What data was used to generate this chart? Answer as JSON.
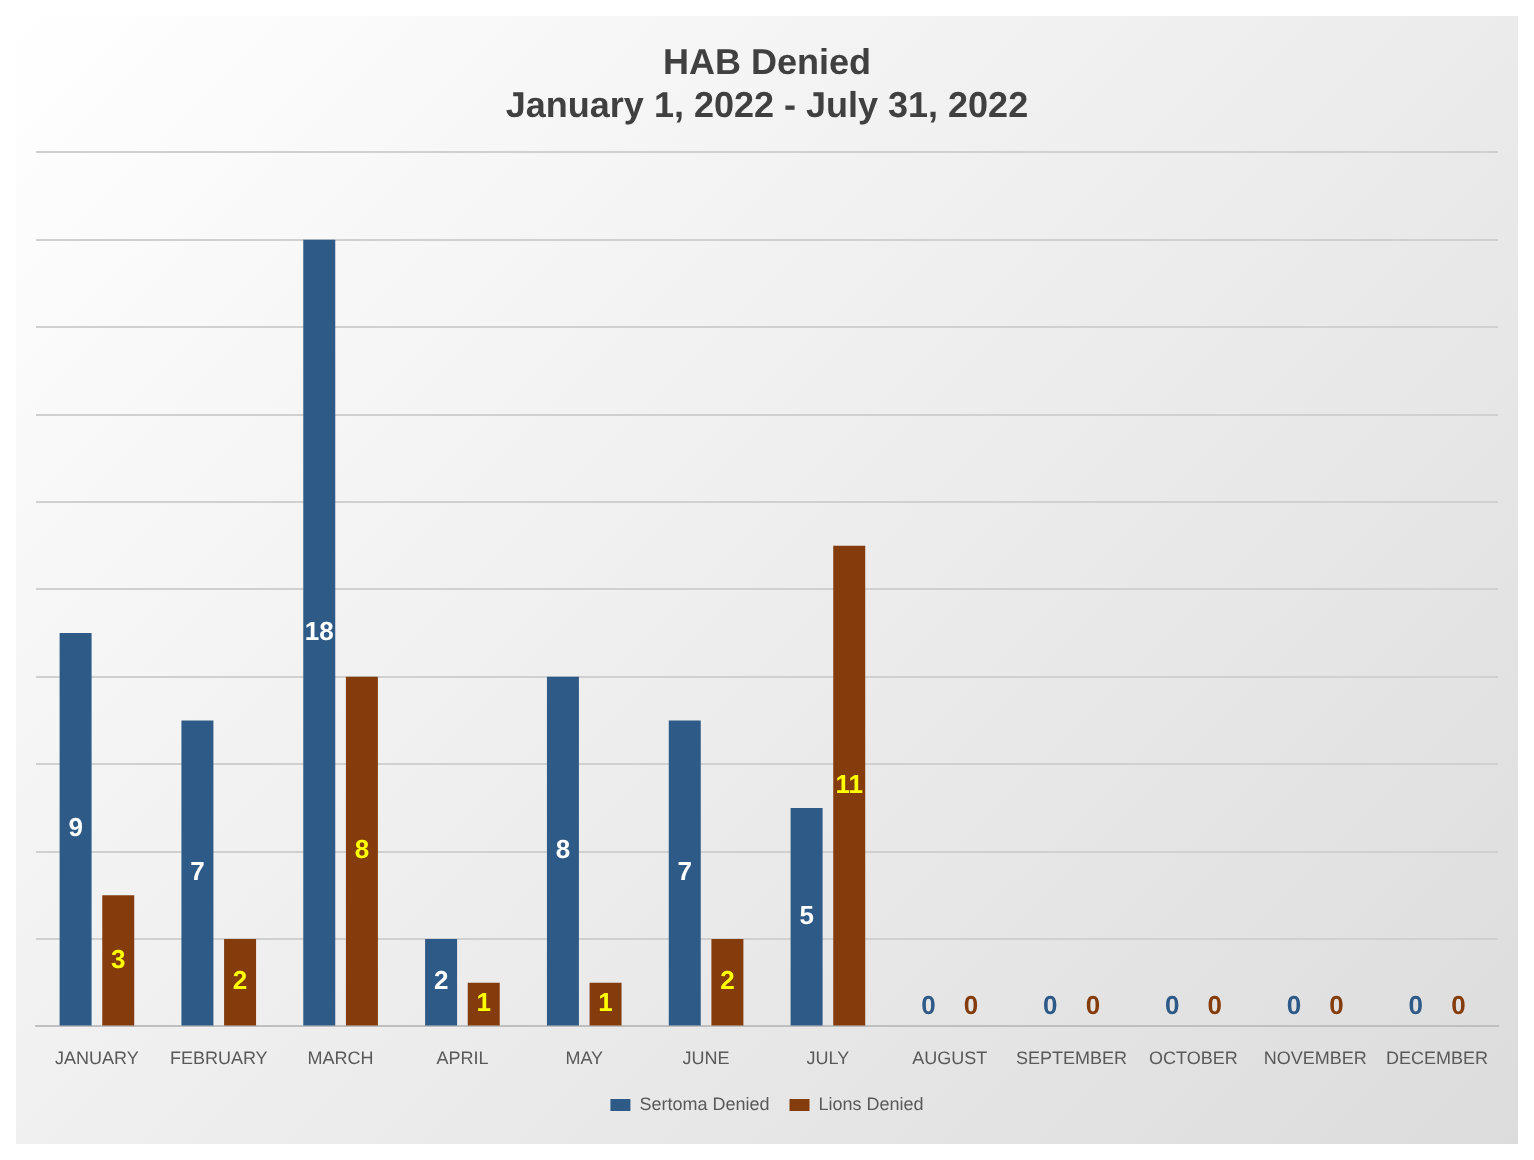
{
  "chart_data": {
    "type": "bar",
    "title": "HAB Denied\nJanuary 1, 2022 - July 31, 2022",
    "categories": [
      "JANUARY",
      "FEBRUARY",
      "MARCH",
      "APRIL",
      "MAY",
      "JUNE",
      "JULY",
      "AUGUST",
      "SEPTEMBER",
      "OCTOBER",
      "NOVEMBER",
      "DECEMBER"
    ],
    "series": [
      {
        "name": "Sertoma Denied",
        "color": "#2e5a87",
        "values": [
          9,
          7,
          18,
          2,
          8,
          7,
          5,
          0,
          0,
          0,
          0,
          0
        ]
      },
      {
        "name": "Lions Denied",
        "color": "#843c0c",
        "values": [
          3,
          2,
          8,
          1,
          1,
          2,
          11,
          0,
          0,
          0,
          0,
          0
        ]
      }
    ],
    "ylim": [
      0,
      20
    ],
    "yticks": [
      {
        "value": 0,
        "label": null
      },
      {
        "value": 2,
        "label": null
      },
      {
        "value": 4,
        "label": null
      },
      {
        "value": 6,
        "label": null
      },
      {
        "value": 8,
        "label": null
      },
      {
        "value": 10,
        "label": null
      },
      {
        "value": 12,
        "label": null
      },
      {
        "value": 14,
        "label": null
      },
      {
        "value": 16,
        "label": null
      },
      {
        "value": 18,
        "label": null
      },
      {
        "value": 20,
        "label": null
      }
    ],
    "grid": "y",
    "legend": "bottom",
    "tick_labels": "x",
    "data_labels": true
  }
}
